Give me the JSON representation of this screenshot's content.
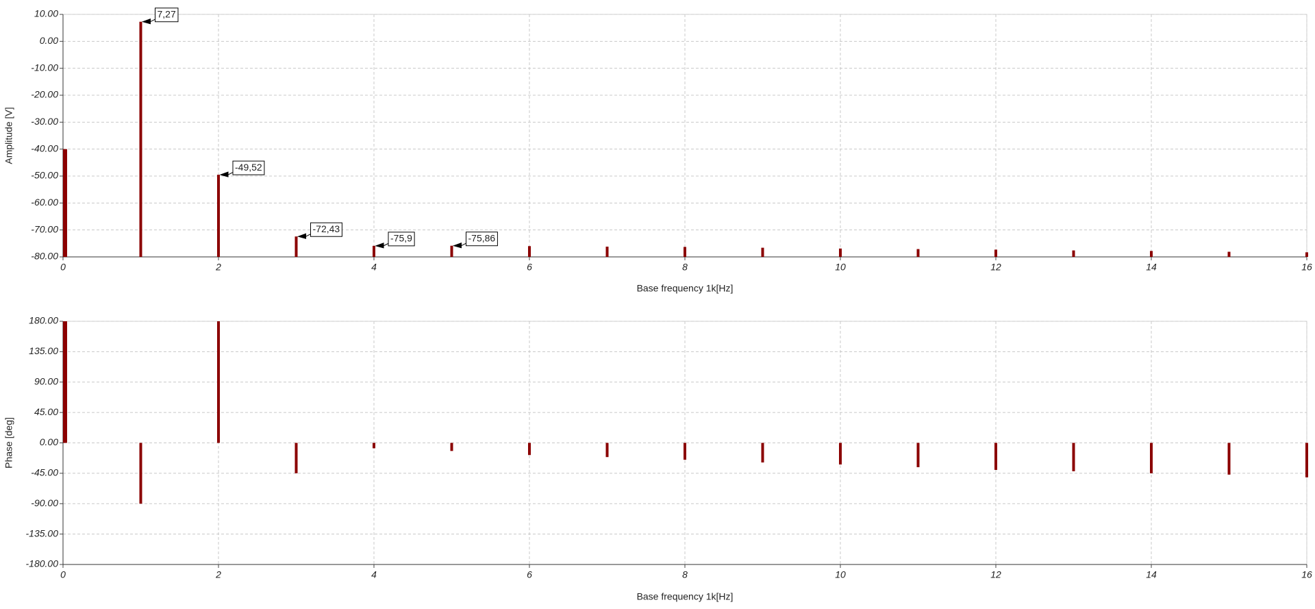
{
  "chart_data": [
    {
      "type": "bar",
      "xlabel": "Base frequency 1k[Hz]",
      "ylabel": "Amplitude [V]",
      "x": [
        0,
        1,
        2,
        3,
        4,
        5,
        6,
        7,
        8,
        9,
        10,
        11,
        12,
        13,
        14,
        15,
        16
      ],
      "values": [
        -40,
        7.27,
        -49.52,
        -72.43,
        -75.9,
        -75.86,
        -76,
        -76.2,
        -76.3,
        -76.6,
        -76.9,
        -77.1,
        -77.3,
        -77.6,
        -77.8,
        -78.1,
        -78.3
      ],
      "value_labels": [
        null,
        "7,27",
        "-49,52",
        "-72,43",
        "-75,9",
        "-75,86",
        null,
        null,
        null,
        null,
        null,
        null,
        null,
        null,
        null,
        null,
        null
      ],
      "color": "#8b0000",
      "baseline": "bottom",
      "xlim": [
        0,
        16
      ],
      "xticks": [
        0,
        2,
        4,
        6,
        8,
        10,
        12,
        14,
        16
      ],
      "ylim": [
        -80,
        10
      ],
      "yticks": [
        {
          "value": -80,
          "label": "-80.00"
        },
        {
          "value": -70,
          "label": "-70.00"
        },
        {
          "value": -60,
          "label": "-60.00"
        },
        {
          "value": -50,
          "label": "-50.00"
        },
        {
          "value": -40,
          "label": "-40.00"
        },
        {
          "value": -30,
          "label": "-30.00"
        },
        {
          "value": -20,
          "label": "-20.00"
        },
        {
          "value": -10,
          "label": "-10.00"
        },
        {
          "value": 0,
          "label": "0.00"
        },
        {
          "value": 10,
          "label": "10.00"
        }
      ],
      "grid": true
    },
    {
      "type": "bar",
      "xlabel": "Base frequency 1k[Hz]",
      "ylabel": "Phase [deg]",
      "x": [
        0,
        1,
        2,
        3,
        4,
        5,
        6,
        7,
        8,
        9,
        10,
        11,
        12,
        13,
        14,
        15,
        16
      ],
      "values": [
        180,
        -90,
        180,
        -45,
        -8,
        -12,
        -18,
        -21,
        -25,
        -29,
        -32,
        -36,
        -40,
        -42,
        -45,
        -47,
        -51
      ],
      "color": "#8b0000",
      "baseline": "zero",
      "xlim": [
        0,
        16
      ],
      "xticks": [
        0,
        2,
        4,
        6,
        8,
        10,
        12,
        14,
        16
      ],
      "ylim": [
        -180,
        180
      ],
      "yticks": [
        {
          "value": -180,
          "label": "-180.00"
        },
        {
          "value": -135,
          "label": "-135.00"
        },
        {
          "value": -90,
          "label": "-90.00"
        },
        {
          "value": -45,
          "label": "-45.00"
        },
        {
          "value": 0,
          "label": "0.00"
        },
        {
          "value": 45,
          "label": "45.00"
        },
        {
          "value": 90,
          "label": "90.00"
        },
        {
          "value": 135,
          "label": "135.00"
        },
        {
          "value": 180,
          "label": "180.00"
        }
      ],
      "grid": true
    }
  ]
}
